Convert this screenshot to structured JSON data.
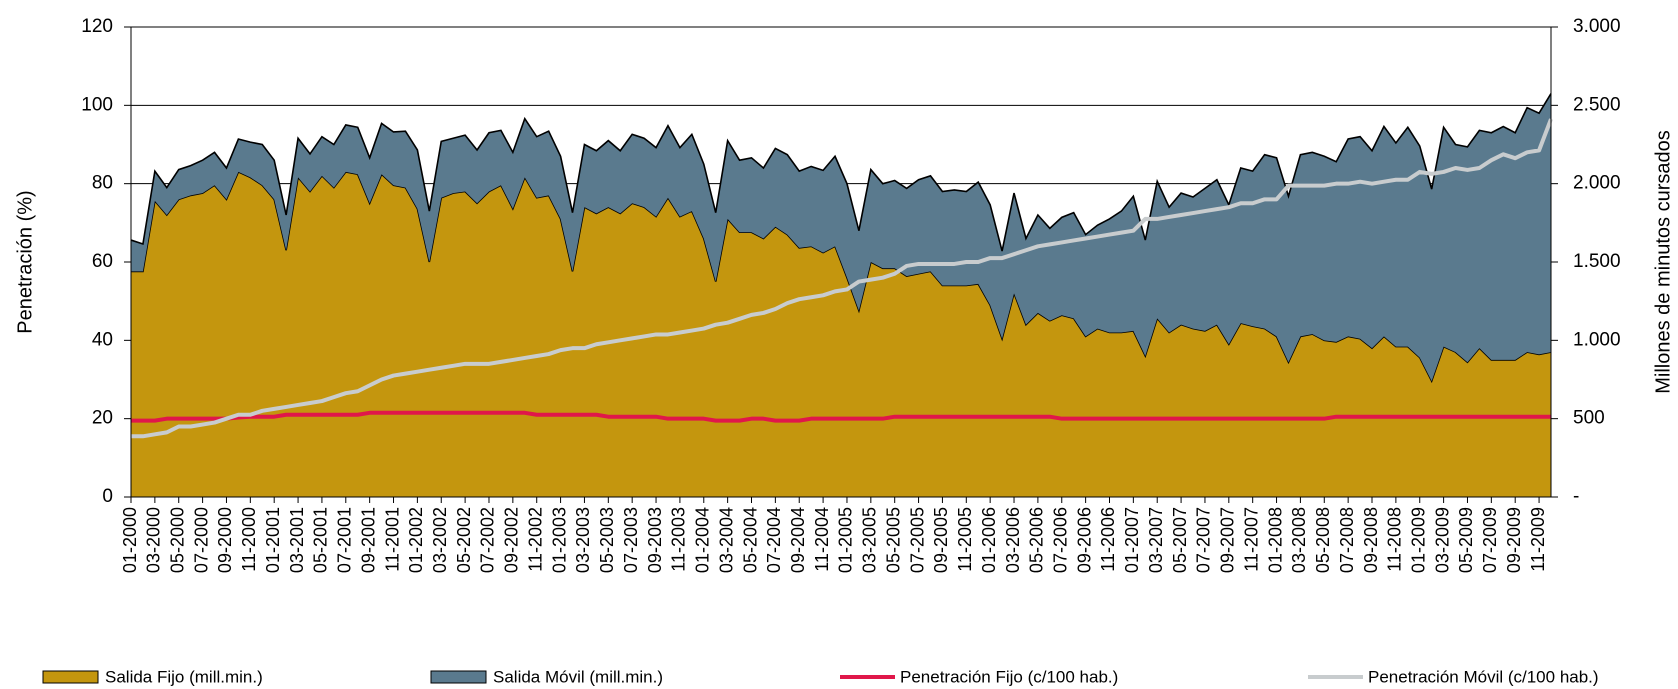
{
  "chart_data": {
    "type": "area",
    "y_label": "Penetración (%)",
    "y2_label": "Millones de minutos cursados",
    "categories": [
      "01-2000",
      null,
      "03-2000",
      null,
      "05-2000",
      null,
      "07-2000",
      null,
      "09-2000",
      null,
      "11-2000",
      null,
      "01-2001",
      null,
      "03-2001",
      null,
      "05-2001",
      null,
      "07-2001",
      null,
      "09-2001",
      null,
      "11-2001",
      null,
      "01-2002",
      null,
      "03-2002",
      null,
      "05-2002",
      null,
      "07-2002",
      null,
      "09-2002",
      null,
      "11-2002",
      null,
      "01-2003",
      null,
      "03-2003",
      null,
      "05-2003",
      null,
      "07-2003",
      null,
      "09-2003",
      null,
      "11-2003",
      null,
      "01-2004",
      null,
      "03-2004",
      null,
      "05-2004",
      null,
      "07-2004",
      null,
      "09-2004",
      null,
      "11-2004",
      null,
      "01-2005",
      null,
      "03-2005",
      null,
      "05-2005",
      null,
      "07-2005",
      null,
      "09-2005",
      null,
      "11-2005",
      null,
      "01-2006",
      null,
      "03-2006",
      null,
      "05-2006",
      null,
      "07-2006",
      null,
      "09-2006",
      null,
      "11-2006",
      null,
      "01-2007",
      null,
      "03-2007",
      null,
      "05-2007",
      null,
      "07-2007",
      null,
      "09-2007",
      null,
      "11-2007",
      null,
      "01-2008",
      null,
      "03-2008",
      null,
      "05-2008",
      null,
      "07-2008",
      null,
      "09-2008",
      null,
      "11-2008",
      null,
      "01-2009",
      null,
      "03-2009",
      null,
      "05-2009",
      null,
      "07-2009",
      null,
      "09-2009",
      null,
      "11-2009",
      null
    ],
    "series": [
      {
        "name": "Salida Fijo (mill.min.)",
        "type": "area",
        "axis": "y2",
        "color": "#c4960e",
        "values": [
          1440,
          1440,
          1890,
          1800,
          1900,
          1925,
          1940,
          1990,
          1900,
          2075,
          2040,
          1990,
          1900,
          1575,
          2040,
          1950,
          2050,
          1975,
          2075,
          2060,
          1875,
          2060,
          1990,
          1975,
          1840,
          1500,
          1910,
          1940,
          1950,
          1875,
          1950,
          1990,
          1840,
          2040,
          1910,
          1925,
          1775,
          1440,
          1850,
          1810,
          1850,
          1810,
          1875,
          1850,
          1790,
          1910,
          1790,
          1825,
          1650,
          1375,
          1775,
          1690,
          1690,
          1650,
          1725,
          1675,
          1590,
          1600,
          1560,
          1600,
          1400,
          1190,
          1500,
          1460,
          1460,
          1410,
          1425,
          1440,
          1350,
          1350,
          1350,
          1360,
          1225,
          1010,
          1300,
          1100,
          1175,
          1125,
          1160,
          1140,
          1025,
          1075,
          1050,
          1050,
          1060,
          900,
          1140,
          1050,
          1100,
          1075,
          1060,
          1100,
          975,
          1110,
          1090,
          1075,
          1025,
          860,
          1025,
          1040,
          1000,
          990,
          1025,
          1010,
          950,
          1025,
          960,
          960,
          890,
          740,
          960,
          925,
          860,
          950,
          875,
          875,
          875,
          925,
          910,
          925
        ]
      },
      {
        "name": "Salida Móvil (mill.min.)",
        "type": "area",
        "axis": "y2",
        "color": "#5a7a8e",
        "values": [
          200,
          175,
          190,
          175,
          190,
          190,
          210,
          210,
          200,
          210,
          225,
          260,
          250,
          225,
          250,
          240,
          250,
          275,
          300,
          300,
          290,
          325,
          340,
          360,
          375,
          325,
          360,
          350,
          360,
          340,
          375,
          350,
          360,
          375,
          390,
          410,
          400,
          375,
          400,
          400,
          425,
          400,
          440,
          440,
          440,
          460,
          440,
          490,
          475,
          440,
          500,
          460,
          475,
          450,
          500,
          510,
          490,
          510,
          525,
          575,
          600,
          510,
          590,
          540,
          560,
          560,
          600,
          610,
          600,
          610,
          600,
          650,
          640,
          560,
          640,
          550,
          625,
          590,
          625,
          675,
          650,
          660,
          725,
          775,
          860,
          740,
          875,
          800,
          840,
          840,
          910,
          925,
          890,
          990,
          990,
          1110,
          1140,
          1060,
          1160,
          1160,
          1175,
          1150,
          1260,
          1290,
          1260,
          1340,
          1300,
          1400,
          1350,
          1225,
          1400,
          1325,
          1375,
          1390,
          1450,
          1490,
          1450,
          1560,
          1540,
          1650
        ]
      },
      {
        "name": "Penetración Fijo (c/100 hab.)",
        "type": "line",
        "color": "#e0174a",
        "values": [
          19.5,
          19.5,
          19.5,
          20,
          20,
          20,
          20,
          20,
          20,
          20.3,
          20.5,
          20.5,
          20.5,
          21,
          21,
          21,
          21,
          21,
          21,
          21,
          21.5,
          21.5,
          21.5,
          21.5,
          21.5,
          21.5,
          21.5,
          21.5,
          21.5,
          21.5,
          21.5,
          21.5,
          21.5,
          21.5,
          21,
          21,
          21,
          21,
          21,
          21,
          20.5,
          20.5,
          20.5,
          20.5,
          20.5,
          20,
          20,
          20,
          20,
          19.5,
          19.5,
          19.5,
          20,
          20,
          19.5,
          19.5,
          19.5,
          20,
          20,
          20,
          20,
          20,
          20,
          20,
          20.5,
          20.5,
          20.5,
          20.5,
          20.5,
          20.5,
          20.5,
          20.5,
          20.5,
          20.5,
          20.5,
          20.5,
          20.5,
          20.5,
          20,
          20,
          20,
          20,
          20,
          20,
          20,
          20,
          20,
          20,
          20,
          20,
          20,
          20,
          20,
          20,
          20,
          20,
          20,
          20,
          20,
          20,
          20,
          20.5,
          20.5,
          20.5,
          20.5,
          20.5,
          20.5,
          20.5,
          20.5,
          20.5,
          20.5,
          20.5,
          20.5,
          20.5,
          20.5,
          20.5,
          20.5,
          20.5,
          20.5,
          20.5
        ]
      },
      {
        "name": "Penetración Móvil (c/100 hab.)",
        "type": "line",
        "color": "#c8ccce",
        "values": [
          15.5,
          15.5,
          16,
          16.5,
          18,
          18,
          18.5,
          19,
          20,
          21,
          21,
          22,
          22.5,
          23,
          23.5,
          24,
          24.5,
          25.5,
          26.5,
          27,
          28.5,
          30,
          31,
          31.5,
          32,
          32.5,
          33,
          33.5,
          34,
          34,
          34,
          34.5,
          35,
          35.5,
          36,
          36.5,
          37.5,
          38,
          38,
          39,
          39.5,
          40,
          40.5,
          41,
          41.5,
          41.5,
          42,
          42.5,
          43,
          44,
          44.5,
          45.5,
          46.5,
          47,
          48,
          49.5,
          50.5,
          51,
          51.5,
          52.5,
          53,
          55,
          55.5,
          56,
          57,
          59,
          59.5,
          59.5,
          59.5,
          59.5,
          60,
          60,
          61,
          61,
          62,
          63,
          64,
          64.5,
          65,
          65.5,
          66,
          66.5,
          67,
          67.5,
          68,
          71,
          71,
          71.5,
          72,
          72.5,
          73,
          73.5,
          74,
          75,
          75,
          76,
          76,
          79.5,
          79.5,
          79.5,
          79.5,
          80,
          80,
          80.5,
          80,
          80.5,
          81,
          81,
          83,
          82.5,
          83,
          84,
          83.5,
          84,
          86,
          87.5,
          86.5,
          88,
          88.5,
          96.5
        ]
      }
    ],
    "ylim": [
      0,
      120
    ],
    "yticks": [
      0,
      20,
      40,
      60,
      80,
      100,
      120
    ],
    "y2lim": [
      0,
      3000
    ],
    "y2ticks": [
      {
        "value": 0,
        "label": "-"
      },
      500,
      {
        "value": 1000,
        "label": "1.000"
      },
      {
        "value": 1500,
        "label": "1.500"
      },
      {
        "value": 2000,
        "label": "2.000"
      },
      {
        "value": 2500,
        "label": "2.500"
      },
      {
        "value": 3000,
        "label": "3.000"
      }
    ],
    "grid": true,
    "legend": "bottom"
  }
}
